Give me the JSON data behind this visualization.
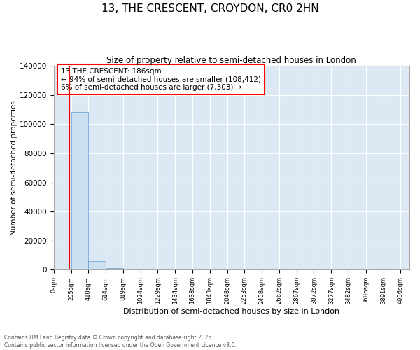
{
  "title": "13, THE CRESCENT, CROYDON, CR0 2HN",
  "subtitle": "Size of property relative to semi-detached houses in London",
  "xlabel": "Distribution of semi-detached houses by size in London",
  "ylabel": "Number of semi-detached properties",
  "annotation_title": "13 THE CRESCENT: 186sqm",
  "annotation_line1": "← 94% of semi-detached houses are smaller (108,412)",
  "annotation_line2": "6% of semi-detached houses are larger (7,303) →",
  "footer1": "Contains HM Land Registry data © Crown copyright and database right 2025.",
  "footer2": "Contains public sector information licensed under the Open Government Licence v3.0.",
  "bar_color": "#cce0f0",
  "bar_edge_color": "#5b9bd5",
  "vline_color": "red",
  "vline_position": 186,
  "background_color": "#dce9f5",
  "x_ticks": [
    0,
    205,
    410,
    614,
    819,
    1024,
    1229,
    1434,
    1638,
    1843,
    2048,
    2253,
    2458,
    2662,
    2867,
    3072,
    3277,
    3482,
    3686,
    3891,
    4096
  ],
  "x_tick_labels": [
    "0sqm",
    "205sqm",
    "410sqm",
    "614sqm",
    "819sqm",
    "1024sqm",
    "1229sqm",
    "1434sqm",
    "1638sqm",
    "1843sqm",
    "2048sqm",
    "2253sqm",
    "2458sqm",
    "2662sqm",
    "2867sqm",
    "3072sqm",
    "3277sqm",
    "3482sqm",
    "3686sqm",
    "3891sqm",
    "4096sqm"
  ],
  "hist_data": [
    0,
    108412,
    5800,
    900,
    300,
    150,
    80,
    50,
    30,
    20,
    15,
    12,
    10,
    8,
    7,
    6,
    5,
    4,
    3,
    2,
    1
  ],
  "ylim": [
    0,
    140000
  ],
  "xlim": [
    0,
    4200
  ]
}
